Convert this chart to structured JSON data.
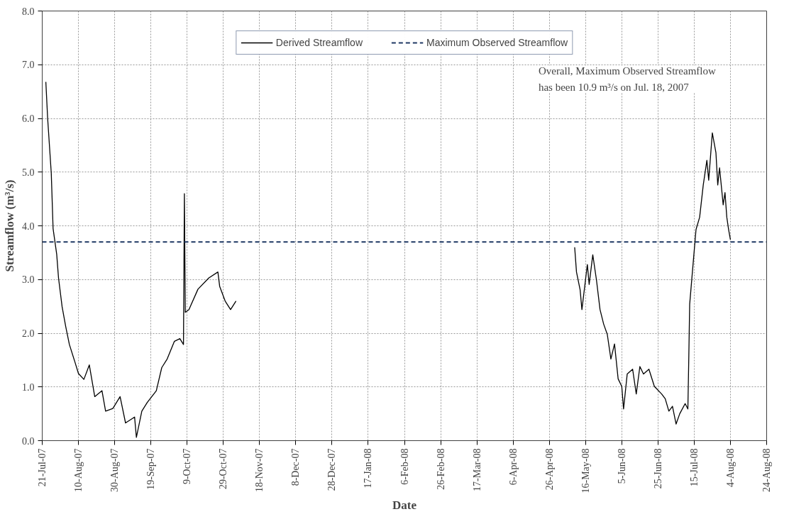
{
  "chart_data": {
    "type": "line",
    "xlabel": "Date",
    "ylabel": "Streamflow (m³/s)",
    "x": [
      "2007-07-23",
      "2007-07-24",
      "2007-07-26",
      "2007-07-27",
      "2007-07-29",
      "2007-07-30",
      "2007-08-01",
      "2007-08-03",
      "2007-08-05",
      "2007-08-08",
      "2007-08-10",
      "2007-08-13",
      "2007-08-16",
      "2007-08-19",
      "2007-08-23",
      "2007-08-25",
      "2007-08-29",
      "2007-09-02",
      "2007-09-05",
      "2007-09-10",
      "2007-09-11",
      "2007-09-14",
      "2007-09-17",
      "2007-09-22",
      "2007-09-25",
      "2007-09-28",
      "2007-10-02",
      "2007-10-05",
      "2007-10-07",
      "2007-10-07T12:00",
      "2007-10-08",
      "2007-10-10",
      "2007-10-15",
      "2007-10-21",
      "2007-10-26",
      "2007-10-27",
      "2007-10-30",
      "2007-11-02",
      "2007-11-05",
      "2008-01-01",
      "2008-05-10",
      "2008-05-11",
      "2008-05-13",
      "2008-05-14",
      "2008-05-16",
      "2008-05-17",
      "2008-05-18",
      "2008-05-20",
      "2008-05-22",
      "2008-05-24",
      "2008-05-26",
      "2008-05-28",
      "2008-05-30",
      "2008-06-01",
      "2008-06-03",
      "2008-06-05",
      "2008-06-06",
      "2008-06-08",
      "2008-06-11",
      "2008-06-13",
      "2008-06-15",
      "2008-06-17",
      "2008-06-20",
      "2008-06-23",
      "2008-06-27",
      "2008-06-29",
      "2008-07-01",
      "2008-07-03",
      "2008-07-05",
      "2008-07-07",
      "2008-07-10",
      "2008-07-11T12:00",
      "2008-07-12",
      "2008-07-12T12:00",
      "2008-07-14",
      "2008-07-16",
      "2008-07-18",
      "2008-07-20",
      "2008-07-22",
      "2008-07-23",
      "2008-07-25",
      "2008-07-27",
      "2008-07-28",
      "2008-07-29",
      "2008-07-31",
      "2008-08-01",
      "2008-08-02",
      "2008-08-03",
      "2008-08-04"
    ],
    "series": [
      {
        "name": "Derived Streamflow",
        "color": "#000000",
        "values": [
          6.68,
          6.0,
          4.98,
          3.95,
          3.47,
          3.03,
          2.49,
          2.12,
          1.79,
          1.47,
          1.25,
          1.14,
          1.41,
          0.82,
          0.93,
          0.55,
          0.6,
          0.82,
          0.33,
          0.44,
          0.06,
          0.55,
          0.71,
          0.93,
          1.36,
          1.52,
          1.85,
          1.9,
          1.79,
          4.6,
          2.39,
          2.44,
          2.82,
          3.03,
          3.14,
          2.87,
          2.6,
          2.44,
          2.6,
          null,
          3.6,
          3.14,
          2.81,
          2.44,
          3.0,
          3.28,
          2.91,
          3.46,
          3.0,
          2.44,
          2.17,
          1.98,
          1.52,
          1.8,
          1.15,
          1.01,
          0.59,
          1.24,
          1.33,
          0.87,
          1.38,
          1.24,
          1.33,
          1.01,
          0.87,
          0.78,
          0.55,
          0.64,
          0.31,
          0.5,
          0.69,
          0.59,
          1.52,
          2.54,
          3.14,
          3.93,
          4.16,
          4.76,
          5.22,
          4.85,
          5.73,
          5.36,
          4.76,
          5.08,
          4.39,
          4.62,
          4.16,
          3.93,
          3.74
        ]
      }
    ],
    "ref_lines": [
      {
        "axis": "y",
        "value": 3.7,
        "label": "Maximum Observed Streamflow",
        "color": "#1f3864",
        "line_style": "dashed"
      }
    ],
    "annotations": [
      "Overall, Maximum Observed Streamflow has been 10.9 m³/s on Jul. 18, 2007"
    ],
    "xlim": [
      "2007-07-21",
      "2008-08-24"
    ],
    "xticks": [
      {
        "value": "2007-07-21",
        "label": "21-Jul-07"
      },
      {
        "value": "2007-08-10",
        "label": "10-Aug-07"
      },
      {
        "value": "2007-08-30",
        "label": "30-Aug-07"
      },
      {
        "value": "2007-09-19",
        "label": "19-Sep-07"
      },
      {
        "value": "2007-10-09",
        "label": "9-Oct-07"
      },
      {
        "value": "2007-10-29",
        "label": "29-Oct-07"
      },
      {
        "value": "2007-11-18",
        "label": "18-Nov-07"
      },
      {
        "value": "2007-12-08",
        "label": "8-Dec-07"
      },
      {
        "value": "2007-12-28",
        "label": "28-Dec-07"
      },
      {
        "value": "2008-01-17",
        "label": "17-Jan-08"
      },
      {
        "value": "2008-02-06",
        "label": "6-Feb-08"
      },
      {
        "value": "2008-02-26",
        "label": "26-Feb-08"
      },
      {
        "value": "2008-03-17",
        "label": "17-Mar-08"
      },
      {
        "value": "2008-04-06",
        "label": "6-Apr-08"
      },
      {
        "value": "2008-04-26",
        "label": "26-Apr-08"
      },
      {
        "value": "2008-05-16",
        "label": "16-May-08"
      },
      {
        "value": "2008-06-05",
        "label": "5-Jun-08"
      },
      {
        "value": "2008-06-25",
        "label": "25-Jun-08"
      },
      {
        "value": "2008-07-15",
        "label": "15-Jul-08"
      },
      {
        "value": "2008-08-04",
        "label": "4-Aug-08"
      },
      {
        "value": "2008-08-24",
        "label": "24-Aug-08"
      }
    ],
    "ylim": [
      0,
      8
    ],
    "yticks": [
      {
        "value": 0,
        "label": "0.0"
      },
      {
        "value": 1,
        "label": "1.0"
      },
      {
        "value": 2,
        "label": "2.0"
      },
      {
        "value": 3,
        "label": "3.0"
      },
      {
        "value": 4,
        "label": "4.0"
      },
      {
        "value": 5,
        "label": "5.0"
      },
      {
        "value": 6,
        "label": "6.0"
      },
      {
        "value": 7,
        "label": "7.0"
      },
      {
        "value": 8,
        "label": "8.0"
      }
    ],
    "grid": true,
    "legend": "top",
    "line_style": "solid",
    "marker": "none"
  }
}
